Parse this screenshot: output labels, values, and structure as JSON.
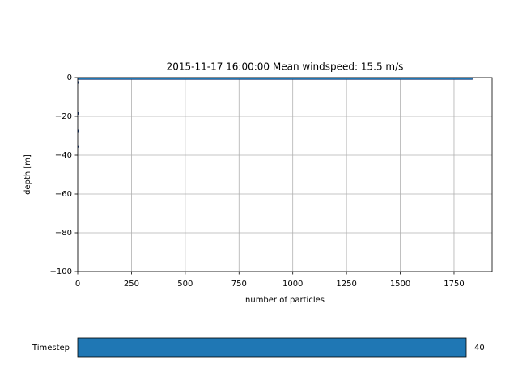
{
  "chart_data": {
    "type": "histogram",
    "orientation": "horizontal",
    "title": "2015-11-17 16:00:00   Mean windspeed: 15.5 m/s",
    "xlabel": "number of particles",
    "ylabel": "depth [m]",
    "bins": [
      -36,
      -35,
      -34,
      -33,
      -32,
      -31,
      -30,
      -29,
      -28,
      -27,
      -26,
      -25,
      -24,
      -23,
      -22,
      -21,
      -20,
      -19,
      -18,
      -17,
      -16,
      -15,
      -14,
      -13,
      -12,
      -11,
      -10,
      -9,
      -8,
      -7,
      -6,
      -5,
      -4,
      -3,
      -2,
      -1,
      0
    ],
    "values": [
      3,
      0,
      0,
      0,
      0,
      0,
      0,
      0,
      3,
      0,
      0,
      0,
      0,
      0,
      0,
      0,
      0,
      3,
      0,
      0,
      0,
      0,
      0,
      0,
      0,
      0,
      0,
      0,
      0,
      0,
      0,
      0,
      0,
      3,
      0,
      1835
    ],
    "color": "#1f77b4",
    "xlim": [
      0,
      1927
    ],
    "xticks": [
      0,
      250,
      500,
      750,
      1000,
      1250,
      1500,
      1750
    ],
    "ylim": [
      -100,
      0
    ],
    "yticks": [
      {
        "value": -100,
        "label": "−100"
      },
      {
        "value": -80,
        "label": "−80"
      },
      {
        "value": -60,
        "label": "−60"
      },
      {
        "value": -40,
        "label": "−40"
      },
      {
        "value": -20,
        "label": "−20"
      },
      0
    ],
    "grid": true
  },
  "slider": {
    "label": "Timestep",
    "value": 40
  }
}
